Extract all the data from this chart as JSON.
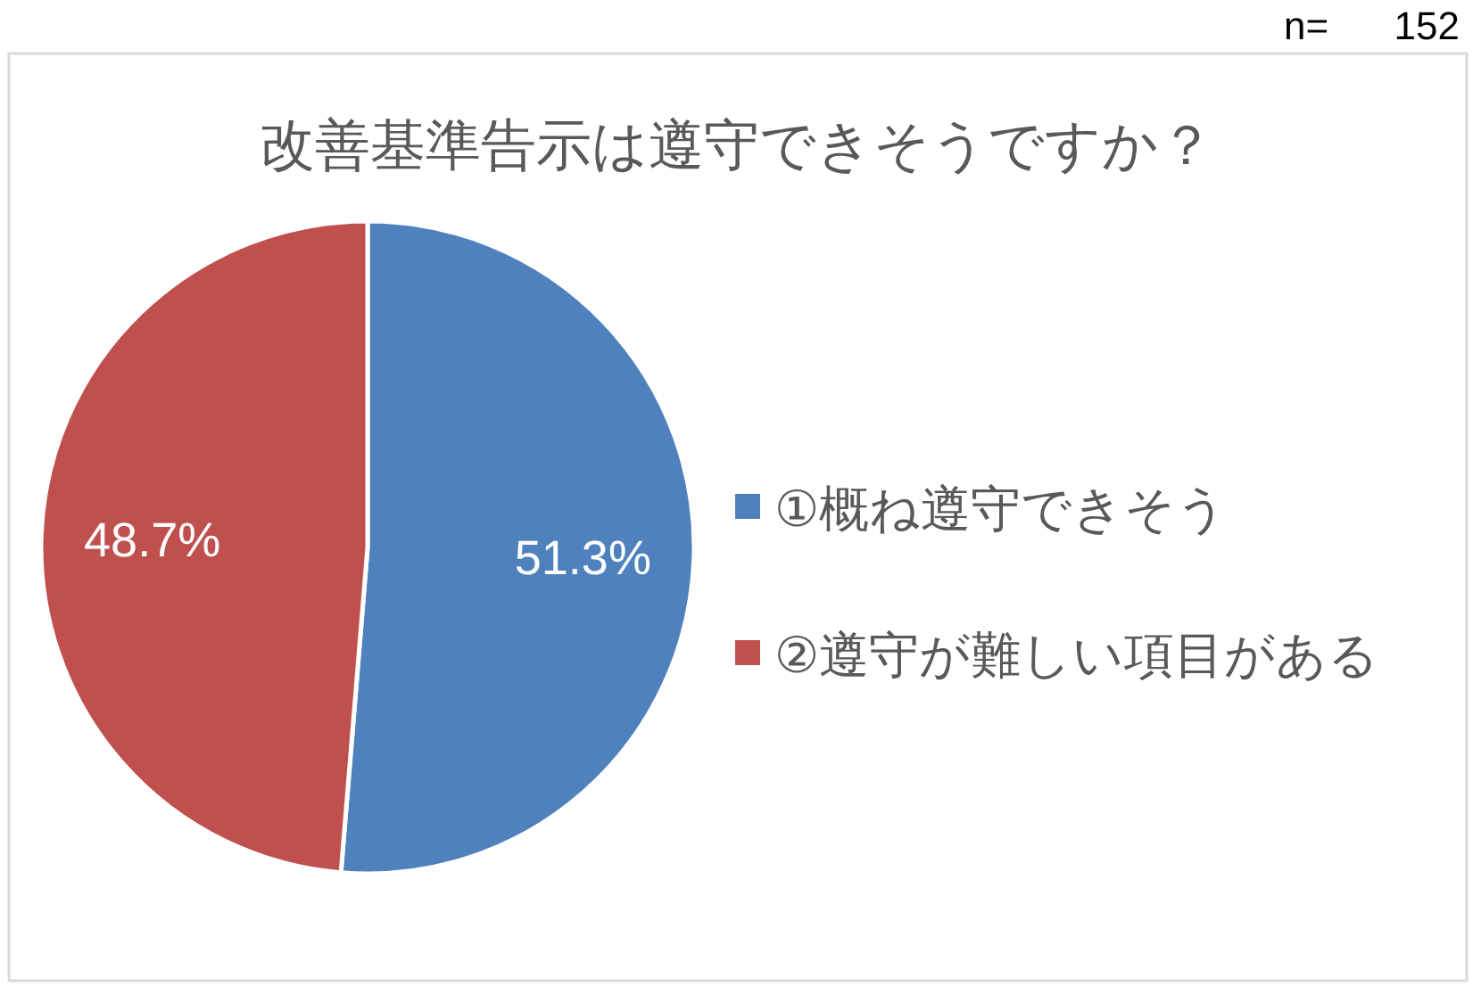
{
  "chart_data": {
    "type": "pie",
    "title": "改善基準告示は遵守できそうですか？",
    "categories": [
      "①概ね遵守できそう",
      "②遵守が難しい項目がある"
    ],
    "values": [
      51.3,
      48.7
    ],
    "colors": [
      "#4f81bd",
      "#c0504d"
    ],
    "value_labels": [
      "51.3%",
      "48.7%"
    ],
    "legend": "right",
    "annotations": [
      "n=      152"
    ]
  }
}
